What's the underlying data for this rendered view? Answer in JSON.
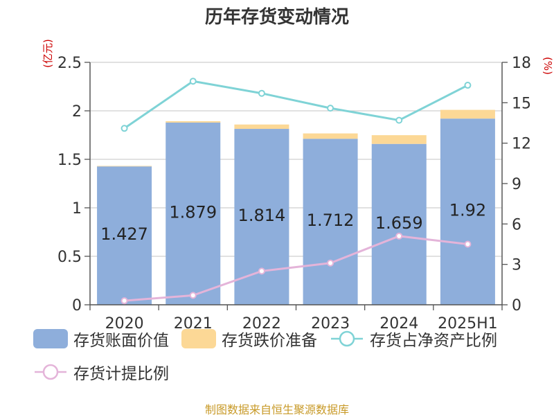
{
  "title": "历年存货变动情况",
  "unit_left": "(亿元)",
  "unit_right": "(%)",
  "source": "制图数据来自恒生聚源数据库",
  "colors": {
    "book": "#8eaedb",
    "impair": "#fcd896",
    "ratio_net": "#7fd3d6",
    "ratio_impair": "#e4b4d9"
  },
  "chart_data": {
    "type": "bar",
    "categories": [
      "2020",
      "2021",
      "2022",
      "2023",
      "2024",
      "2025H1"
    ],
    "ylim_left": [
      0,
      2.5
    ],
    "yticks_left": [
      "0",
      "0.5",
      "1",
      "1.5",
      "2",
      "2.5"
    ],
    "ylim_right": [
      0,
      18
    ],
    "yticks_right": [
      "0",
      "3",
      "6",
      "9",
      "12",
      "15",
      "18"
    ],
    "series": [
      {
        "name": "存货账面价值",
        "kind": "bar",
        "axis": "left",
        "values": [
          1.427,
          1.879,
          1.814,
          1.712,
          1.659,
          1.92
        ],
        "labels": [
          "1.427",
          "1.879",
          "1.814",
          "1.712",
          "1.659",
          "1.92"
        ]
      },
      {
        "name": "存货跌价准备",
        "kind": "bar-stack",
        "axis": "left",
        "values": [
          0.005,
          0.014,
          0.045,
          0.055,
          0.09,
          0.09
        ]
      },
      {
        "name": "存货占净资产比例",
        "kind": "line",
        "axis": "right",
        "values": [
          13.1,
          16.6,
          15.7,
          14.6,
          13.7,
          16.3
        ]
      },
      {
        "name": "存货计提比例",
        "kind": "line",
        "axis": "right",
        "values": [
          0.3,
          0.7,
          2.5,
          3.1,
          5.1,
          4.5
        ]
      }
    ]
  }
}
